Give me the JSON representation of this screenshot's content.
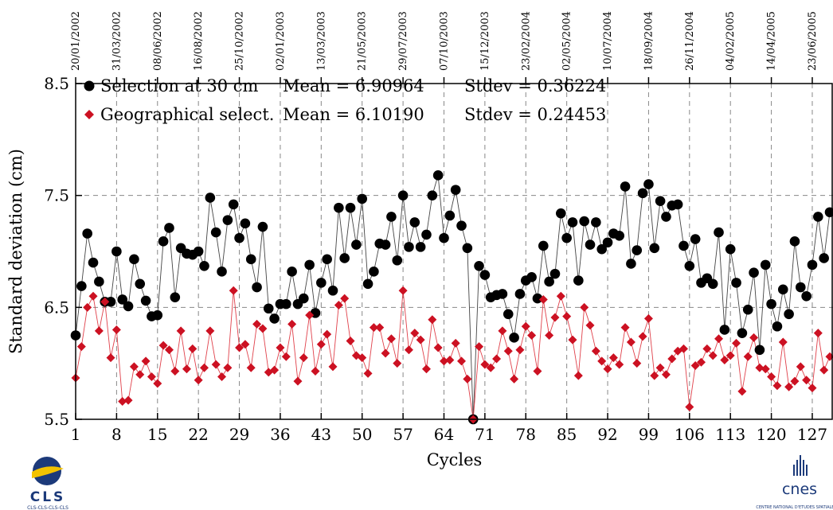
{
  "chart_data": {
    "type": "scatter",
    "title": "",
    "xlabel": "Cycles",
    "ylabel": "Standard deviation (cm)",
    "xlim": [
      1,
      130
    ],
    "ylim": [
      5.5,
      8.5
    ],
    "x_tick_labels": [
      "1",
      "8",
      "15",
      "22",
      "29",
      "36",
      "43",
      "50",
      "57",
      "64",
      "71",
      "78",
      "85",
      "92",
      "99",
      "106",
      "113",
      "120",
      "127"
    ],
    "x_ticks": [
      1,
      8,
      15,
      22,
      29,
      36,
      43,
      50,
      57,
      64,
      71,
      78,
      85,
      92,
      99,
      106,
      113,
      120,
      127
    ],
    "y_tick_labels": [
      "8.5",
      "7.5",
      "6.5",
      "5.5"
    ],
    "y_ticks": [
      8.5,
      7.5,
      6.5,
      5.5
    ],
    "top_dates": [
      "20/01/2002",
      "31/03/2002",
      "08/06/2002",
      "16/08/2002",
      "25/10/2002",
      "02/01/2003",
      "13/03/2003",
      "21/05/2003",
      "29/07/2003",
      "07/10/2003",
      "15/12/2003",
      "23/02/2004",
      "02/05/2004",
      "10/07/2004",
      "18/09/2004",
      "26/11/2004",
      "04/02/2005",
      "14/04/2005",
      "23/06/2005"
    ],
    "grid": true,
    "legend_position": "top-left",
    "series": [
      {
        "name": "Selection at 30 cm",
        "mean_label": "Mean = 6.90964",
        "stdev_label": "Stdev = 0.36224",
        "color": "#000000",
        "marker": "circle",
        "x": [
          1,
          2,
          3,
          4,
          5,
          6,
          7,
          8,
          9,
          10,
          11,
          12,
          13,
          14,
          15,
          16,
          17,
          18,
          19,
          20,
          21,
          22,
          23,
          24,
          25,
          26,
          27,
          28,
          29,
          30,
          31,
          32,
          33,
          34,
          35,
          36,
          37,
          38,
          39,
          40,
          41,
          42,
          43,
          44,
          45,
          46,
          47,
          48,
          49,
          50,
          51,
          52,
          53,
          54,
          55,
          56,
          57,
          58,
          59,
          60,
          61,
          62,
          63,
          64,
          65,
          66,
          67,
          68,
          69,
          70,
          71,
          72,
          73,
          74,
          75,
          76,
          77,
          78,
          79,
          80,
          81,
          82,
          83,
          84,
          85,
          86,
          87,
          88,
          89,
          90,
          91,
          92,
          93,
          94,
          95,
          96,
          97,
          98,
          99,
          100,
          101,
          102,
          103,
          104,
          105,
          106,
          107,
          108,
          109,
          110,
          111,
          112,
          113,
          114,
          115,
          116,
          117,
          118,
          119,
          120,
          121,
          122,
          123,
          124,
          125,
          126,
          127,
          128,
          129,
          130
        ],
        "values": [
          6.25,
          6.69,
          7.16,
          6.9,
          6.73,
          6.55,
          6.55,
          7.0,
          6.57,
          6.51,
          6.93,
          6.71,
          6.56,
          6.42,
          6.43,
          7.09,
          7.21,
          6.59,
          7.03,
          6.98,
          6.97,
          7.0,
          6.87,
          7.48,
          7.17,
          6.82,
          7.28,
          7.42,
          7.12,
          7.25,
          6.93,
          6.68,
          7.22,
          6.49,
          6.4,
          6.53,
          6.53,
          6.82,
          6.53,
          6.58,
          6.88,
          6.45,
          6.72,
          6.93,
          6.65,
          7.39,
          6.94,
          7.39,
          7.06,
          7.47,
          6.71,
          6.82,
          7.07,
          7.06,
          7.31,
          6.92,
          7.5,
          7.04,
          7.26,
          7.04,
          7.15,
          7.5,
          7.68,
          7.12,
          7.32,
          7.55,
          7.23,
          7.03,
          5.5,
          6.87,
          6.79,
          6.59,
          6.61,
          6.62,
          6.44,
          6.23,
          6.62,
          6.74,
          6.77,
          6.58,
          7.05,
          6.73,
          6.8,
          7.34,
          7.12,
          7.26,
          6.74,
          7.27,
          7.06,
          7.26,
          7.02,
          7.08,
          7.16,
          7.14,
          7.58,
          6.89,
          7.01,
          7.52,
          7.6,
          7.03,
          7.45,
          7.31,
          7.41,
          7.42,
          7.05,
          6.87,
          7.11,
          6.72,
          6.76,
          6.71,
          7.17,
          6.3,
          7.02,
          6.72,
          6.27,
          6.48,
          6.81,
          6.12,
          6.88,
          6.53,
          6.33,
          6.66,
          6.44,
          7.09,
          6.68,
          6.6,
          6.88,
          7.31,
          6.94,
          7.35
        ]
      },
      {
        "name": "Geographical select.",
        "mean_label": "Mean = 6.10190",
        "stdev_label": "Stdev = 0.24453",
        "color": "#cc1122",
        "marker": "diamond",
        "x": [
          1,
          2,
          3,
          4,
          5,
          6,
          7,
          8,
          9,
          10,
          11,
          12,
          13,
          14,
          15,
          16,
          17,
          18,
          19,
          20,
          21,
          22,
          23,
          24,
          25,
          26,
          27,
          28,
          29,
          30,
          31,
          32,
          33,
          34,
          35,
          36,
          37,
          38,
          39,
          40,
          41,
          42,
          43,
          44,
          45,
          46,
          47,
          48,
          49,
          50,
          51,
          52,
          53,
          54,
          55,
          56,
          57,
          58,
          59,
          60,
          61,
          62,
          63,
          64,
          65,
          66,
          67,
          68,
          69,
          70,
          71,
          72,
          73,
          74,
          75,
          76,
          77,
          78,
          79,
          80,
          81,
          82,
          83,
          84,
          85,
          86,
          87,
          88,
          89,
          90,
          91,
          92,
          93,
          94,
          95,
          96,
          97,
          98,
          99,
          100,
          101,
          102,
          103,
          104,
          105,
          106,
          107,
          108,
          109,
          110,
          111,
          112,
          113,
          114,
          115,
          116,
          117,
          118,
          119,
          120,
          121,
          122,
          123,
          124,
          125,
          126,
          127,
          128,
          129,
          130
        ],
        "values": [
          5.87,
          6.15,
          6.5,
          6.6,
          6.29,
          6.55,
          6.05,
          6.3,
          5.66,
          5.67,
          5.97,
          5.9,
          6.02,
          5.88,
          5.82,
          6.16,
          6.12,
          5.93,
          6.29,
          5.95,
          6.13,
          5.85,
          5.96,
          6.29,
          5.99,
          5.88,
          5.96,
          6.65,
          6.14,
          6.17,
          5.96,
          6.35,
          6.31,
          5.92,
          5.94,
          6.14,
          6.06,
          6.35,
          5.84,
          6.05,
          6.43,
          5.93,
          6.17,
          6.26,
          5.97,
          6.52,
          6.58,
          6.2,
          6.07,
          6.05,
          5.91,
          6.32,
          6.32,
          6.09,
          6.22,
          6.0,
          6.65,
          6.12,
          6.27,
          6.21,
          5.95,
          6.39,
          6.14,
          6.02,
          6.03,
          6.18,
          6.02,
          5.86,
          5.5,
          6.15,
          5.99,
          5.96,
          6.04,
          6.29,
          6.11,
          5.86,
          6.12,
          6.33,
          6.25,
          5.93,
          6.57,
          6.25,
          6.41,
          6.6,
          6.42,
          6.21,
          5.89,
          6.5,
          6.34,
          6.11,
          6.02,
          5.95,
          6.05,
          5.99,
          6.32,
          6.19,
          6.0,
          6.24,
          6.4,
          5.89,
          5.96,
          5.9,
          6.04,
          6.11,
          6.13,
          5.61,
          5.98,
          6.01,
          6.13,
          6.07,
          6.22,
          6.03,
          6.07,
          6.18,
          5.75,
          6.06,
          6.23,
          5.96,
          5.95,
          5.88,
          5.8,
          6.19,
          5.79,
          5.84,
          5.97,
          5.85,
          5.78,
          6.27,
          5.94,
          6.06
        ]
      }
    ]
  },
  "logos": {
    "left": {
      "name": "CLS",
      "sub": "CLS-CLS-CLS-CLS"
    },
    "right": {
      "name": "cnes",
      "sub": "CENTRE NATIONAL D'ETUDES SPATIALES"
    }
  }
}
